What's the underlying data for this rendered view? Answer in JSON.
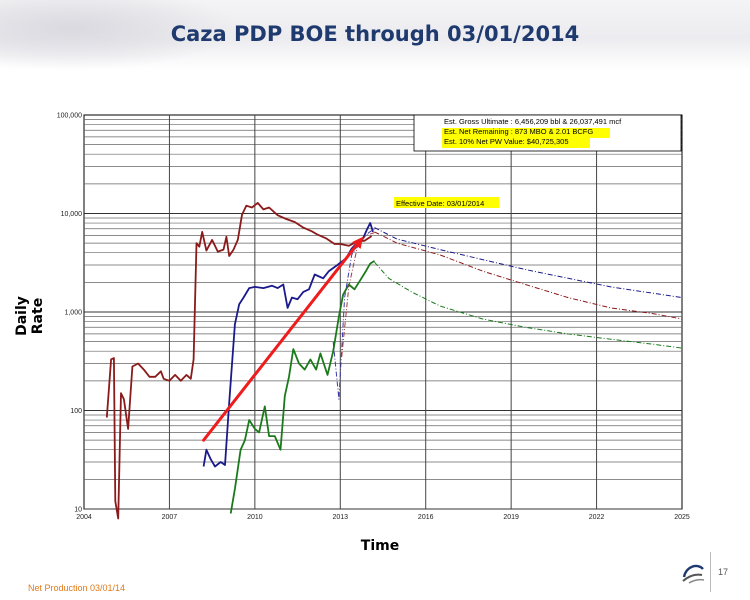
{
  "title": "Caza PDP BOE through 03/01/2014",
  "footer": {
    "note": "Net Production 03/01/14",
    "page_number": "17"
  },
  "chart_data": {
    "type": "line",
    "y_scale": "log",
    "xlabel": "Time",
    "ylabel": "Daily Rate",
    "xlim": [
      2004,
      2025
    ],
    "ylim": [
      10,
      100000
    ],
    "grid": true,
    "x_ticks": [
      "2004",
      "2007",
      "2010",
      "2013",
      "2016",
      "2019",
      "2022",
      "2025"
    ],
    "y_ticks": [
      "10",
      "100",
      "1,000",
      "10,000",
      "100,000"
    ],
    "annotations": {
      "box_lines": [
        "Est. Gross Ultimate : 6,456,209 bbl & 26,037,491 mcf",
        "Est. Net Remaining : 873 MBO & 2.01 BCFG",
        "Est. 10% Net PW Value: $40,725,305"
      ],
      "effective_date": "Effective Date: 03/01/2014",
      "highlight_color": "#ffff00"
    },
    "trend_arrow": {
      "color": "#ee1c1c",
      "from": [
        2008.2,
        50
      ],
      "to": [
        2013.8,
        5800
      ]
    },
    "series": [
      {
        "color": "#8b1a1a",
        "style": "solid",
        "points": [
          [
            2004.8,
            85
          ],
          [
            2004.95,
            330
          ],
          [
            2005.05,
            340
          ],
          [
            2005.1,
            12
          ],
          [
            2005.2,
            8
          ],
          [
            2005.3,
            150
          ],
          [
            2005.4,
            130
          ],
          [
            2005.55,
            65
          ],
          [
            2005.7,
            280
          ],
          [
            2005.9,
            300
          ],
          [
            2006.1,
            260
          ],
          [
            2006.3,
            220
          ],
          [
            2006.5,
            220
          ],
          [
            2006.7,
            250
          ],
          [
            2006.8,
            210
          ],
          [
            2007.0,
            200
          ],
          [
            2007.2,
            230
          ],
          [
            2007.4,
            200
          ],
          [
            2007.6,
            230
          ],
          [
            2007.75,
            210
          ],
          [
            2007.85,
            330
          ],
          [
            2007.95,
            5000
          ],
          [
            2008.05,
            4600
          ],
          [
            2008.15,
            6500
          ],
          [
            2008.3,
            4200
          ],
          [
            2008.5,
            5400
          ],
          [
            2008.7,
            4100
          ],
          [
            2008.9,
            4300
          ],
          [
            2009.0,
            5800
          ],
          [
            2009.1,
            3700
          ],
          [
            2009.25,
            4300
          ],
          [
            2009.4,
            5400
          ],
          [
            2009.55,
            9700
          ],
          [
            2009.7,
            12000
          ],
          [
            2009.9,
            11500
          ],
          [
            2010.1,
            12800
          ],
          [
            2010.3,
            11000
          ],
          [
            2010.5,
            11500
          ],
          [
            2010.8,
            9600
          ],
          [
            2011.1,
            8800
          ],
          [
            2011.4,
            8200
          ],
          [
            2011.7,
            7200
          ],
          [
            2012.0,
            6600
          ],
          [
            2012.2,
            6100
          ],
          [
            2012.5,
            5600
          ],
          [
            2012.8,
            4900
          ],
          [
            2013.0,
            4900
          ],
          [
            2013.3,
            4700
          ],
          [
            2013.6,
            5200
          ],
          [
            2013.85,
            5300
          ],
          [
            2014.1,
            5900
          ]
        ]
      },
      {
        "color": "#1a1a8b",
        "style": "solid",
        "points": [
          [
            2008.2,
            27
          ],
          [
            2008.3,
            40
          ],
          [
            2008.45,
            32
          ],
          [
            2008.6,
            27
          ],
          [
            2008.8,
            30
          ],
          [
            2008.95,
            28
          ],
          [
            2009.1,
            120
          ],
          [
            2009.3,
            750
          ],
          [
            2009.45,
            1200
          ],
          [
            2009.6,
            1400
          ],
          [
            2009.8,
            1750
          ],
          [
            2010.0,
            1800
          ],
          [
            2010.3,
            1750
          ],
          [
            2010.6,
            1850
          ],
          [
            2010.8,
            1750
          ],
          [
            2011.0,
            1900
          ],
          [
            2011.15,
            1100
          ],
          [
            2011.3,
            1400
          ],
          [
            2011.5,
            1350
          ],
          [
            2011.7,
            1600
          ],
          [
            2011.9,
            1700
          ],
          [
            2012.1,
            2400
          ],
          [
            2012.4,
            2200
          ],
          [
            2012.6,
            2600
          ],
          [
            2012.9,
            3000
          ],
          [
            2013.2,
            3500
          ],
          [
            2013.4,
            4400
          ],
          [
            2013.6,
            5100
          ],
          [
            2013.8,
            5600
          ],
          [
            2013.95,
            7000
          ],
          [
            2014.05,
            8000
          ],
          [
            2014.15,
            6500
          ]
        ]
      },
      {
        "color": "#1a7a1a",
        "style": "solid",
        "points": [
          [
            2009.15,
            9
          ],
          [
            2009.3,
            16
          ],
          [
            2009.5,
            40
          ],
          [
            2009.65,
            50
          ],
          [
            2009.8,
            80
          ],
          [
            2010.0,
            65
          ],
          [
            2010.15,
            60
          ],
          [
            2010.35,
            110
          ],
          [
            2010.5,
            55
          ],
          [
            2010.7,
            55
          ],
          [
            2010.9,
            40
          ],
          [
            2011.05,
            140
          ],
          [
            2011.2,
            220
          ],
          [
            2011.35,
            420
          ],
          [
            2011.55,
            300
          ],
          [
            2011.75,
            260
          ],
          [
            2011.95,
            330
          ],
          [
            2012.15,
            260
          ],
          [
            2012.3,
            380
          ],
          [
            2012.55,
            230
          ],
          [
            2012.75,
            400
          ],
          [
            2012.95,
            900
          ],
          [
            2013.1,
            1500
          ],
          [
            2013.3,
            1900
          ],
          [
            2013.5,
            1700
          ],
          [
            2013.7,
            2100
          ],
          [
            2013.9,
            2600
          ],
          [
            2014.05,
            3100
          ],
          [
            2014.2,
            3300
          ]
        ]
      },
      {
        "color": "#8b1a1a",
        "style": "dashdot",
        "points": [
          [
            2014.2,
            6500
          ],
          [
            2015.0,
            5000
          ],
          [
            2016.5,
            3800
          ],
          [
            2018.0,
            2600
          ],
          [
            2019.5,
            1900
          ],
          [
            2021.0,
            1400
          ],
          [
            2022.5,
            1100
          ],
          [
            2024.0,
            960
          ],
          [
            2025.0,
            850
          ]
        ]
      },
      {
        "color": "#1a1a8b",
        "style": "dashdot",
        "points": [
          [
            2014.2,
            7200
          ],
          [
            2015.0,
            5500
          ],
          [
            2016.5,
            4300
          ],
          [
            2018.0,
            3400
          ],
          [
            2019.5,
            2700
          ],
          [
            2021.0,
            2200
          ],
          [
            2022.5,
            1800
          ],
          [
            2024.0,
            1550
          ],
          [
            2025.0,
            1400
          ]
        ]
      },
      {
        "color": "#1a7a1a",
        "style": "dashdot",
        "points": [
          [
            2014.2,
            3200
          ],
          [
            2014.7,
            2200
          ],
          [
            2015.5,
            1600
          ],
          [
            2016.5,
            1150
          ],
          [
            2018.0,
            850
          ],
          [
            2019.5,
            700
          ],
          [
            2021.0,
            600
          ],
          [
            2022.5,
            530
          ],
          [
            2024.0,
            470
          ],
          [
            2025.0,
            430
          ]
        ]
      },
      {
        "color": "#3a3aa8",
        "style": "dashdot",
        "points": [
          [
            2012.75,
            500
          ],
          [
            2012.95,
            130
          ],
          [
            2013.15,
            1400
          ],
          [
            2013.4,
            3800
          ],
          [
            2013.7,
            5200
          ],
          [
            2014.0,
            6400
          ],
          [
            2014.2,
            7000
          ]
        ]
      },
      {
        "color": "#a83a3a",
        "style": "dashdot",
        "points": [
          [
            2013.05,
            350
          ],
          [
            2013.3,
            1800
          ],
          [
            2013.6,
            4600
          ],
          [
            2013.9,
            6000
          ],
          [
            2014.2,
            6400
          ]
        ]
      }
    ]
  }
}
